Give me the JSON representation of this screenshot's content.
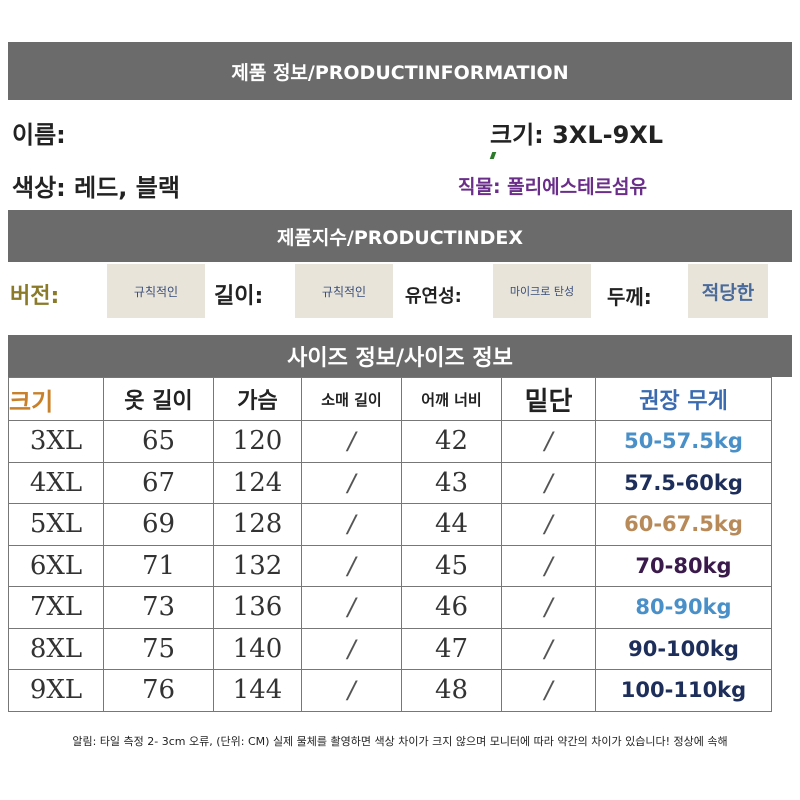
{
  "header": {
    "title": "제품 정보/PRODUCTINFORMATION"
  },
  "info": {
    "name": "이름:",
    "size": "크기: 3XL-9XL",
    "color": "색상: 레드, 블랙",
    "fabric": "직물: 폴리에스테르섬유"
  },
  "index_header": {
    "title": "제품지수/PRODUCTINDEX"
  },
  "attributes": {
    "version_label": "버전:",
    "version_value": "규칙적인",
    "length_label": "길이:",
    "length_value": "규칙적인",
    "stretch_label": "유연성:",
    "stretch_value": "마이크로 탄성",
    "thickness_label": "두께:",
    "thickness_value": "적당한"
  },
  "size_header": {
    "title": "사이즈 정보/사이즈 정보"
  },
  "table": {
    "headers": [
      "크기",
      "옷 길이",
      "가슴",
      "소매 길이",
      "어깨 너비",
      "밑단",
      "권장 무게"
    ],
    "rows": [
      [
        "3XL",
        "65",
        "120",
        "/",
        "42",
        "/",
        "50-57.5kg"
      ],
      [
        "4XL",
        "67",
        "124",
        "/",
        "43",
        "/",
        "57.5-60kg"
      ],
      [
        "5XL",
        "69",
        "128",
        "/",
        "44",
        "/",
        "60-67.5kg"
      ],
      [
        "6XL",
        "71",
        "132",
        "/",
        "45",
        "/",
        "70-80kg"
      ],
      [
        "7XL",
        "73",
        "136",
        "/",
        "46",
        "/",
        "80-90kg"
      ],
      [
        "8XL",
        "75",
        "140",
        "/",
        "47",
        "/",
        "90-100kg"
      ],
      [
        "9XL",
        "76",
        "144",
        "/",
        "48",
        "/",
        "100-110kg"
      ]
    ],
    "weight_colors": [
      "#4a90c8",
      "#1e2e5a",
      "#b88a5a",
      "#3a1a4a",
      "#4a90c8",
      "#1e2e5a",
      "#1e2e5a"
    ]
  },
  "note": "알림: 타일 측정 2- 3cm 오류, (단위: CM) 실제 물체를 촬영하면 색상 차이가 크지 않으며 모니터에 따라 약간의 차이가 있습니다! 정상에 속해"
}
